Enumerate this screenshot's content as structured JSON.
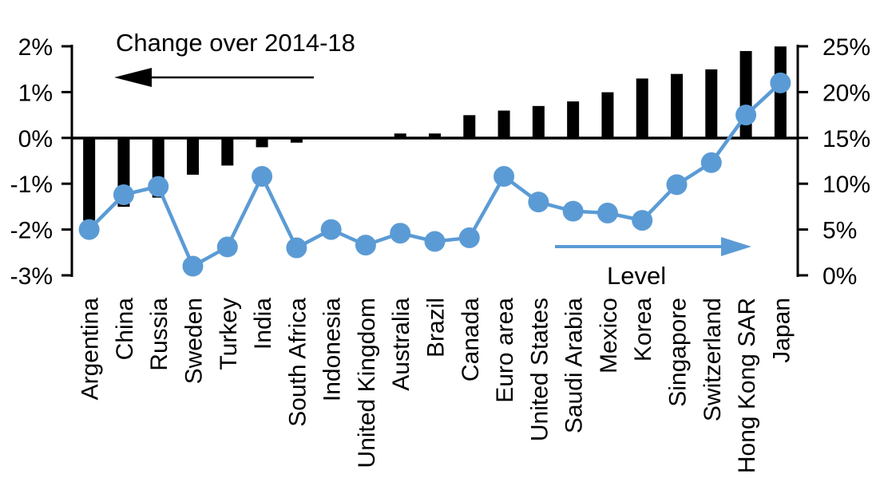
{
  "chart_data": {
    "type": "combo-bar-line",
    "title": "",
    "categories": [
      "Argentina",
      "China",
      "Russia",
      "Sweden",
      "Turkey",
      "India",
      "South Africa",
      "Indonesia",
      "United Kingdom",
      "Australia",
      "Brazil",
      "Canada",
      "Euro area",
      "United States",
      "Saudi Arabia",
      "Mexico",
      "Korea",
      "Singapore",
      "Switzerland",
      "Hong Kong SAR",
      "Japan"
    ],
    "series": [
      {
        "name": "Change over 2014-18",
        "type": "bar",
        "axis": "left",
        "color": "#000000",
        "values": [
          -1.8,
          -1.5,
          -1.3,
          -0.8,
          -0.6,
          -0.2,
          -0.1,
          0.0,
          0.0,
          0.1,
          0.1,
          0.5,
          0.6,
          0.7,
          0.8,
          1.0,
          1.3,
          1.4,
          1.5,
          1.9,
          2.0
        ]
      },
      {
        "name": "Level",
        "type": "line",
        "axis": "right",
        "color": "#5b9bd5",
        "values": [
          5.0,
          8.8,
          9.7,
          1.0,
          3.1,
          10.8,
          3.0,
          5.0,
          3.3,
          4.6,
          3.7,
          4.1,
          10.8,
          8.0,
          7.0,
          6.8,
          6.0,
          9.9,
          12.3,
          17.5,
          21.0
        ]
      }
    ],
    "left_axis": {
      "min": -3,
      "max": 2,
      "tick_labels": [
        "2%",
        "1%",
        "0%",
        "-1%",
        "-2%",
        "-3%"
      ]
    },
    "right_axis": {
      "min": 0,
      "max": 25,
      "tick_labels": [
        "25%",
        "20%",
        "15%",
        "10%",
        "5%",
        "0%"
      ]
    },
    "annotations": {
      "change_label": "Change over 2014-18",
      "level_label": "Level"
    },
    "grid": false,
    "legend_position": "in-chart arrow annotations",
    "colors": {
      "bar": "#000000",
      "line": "#5b9bd5",
      "text": "#000000",
      "background": "#ffffff"
    }
  }
}
